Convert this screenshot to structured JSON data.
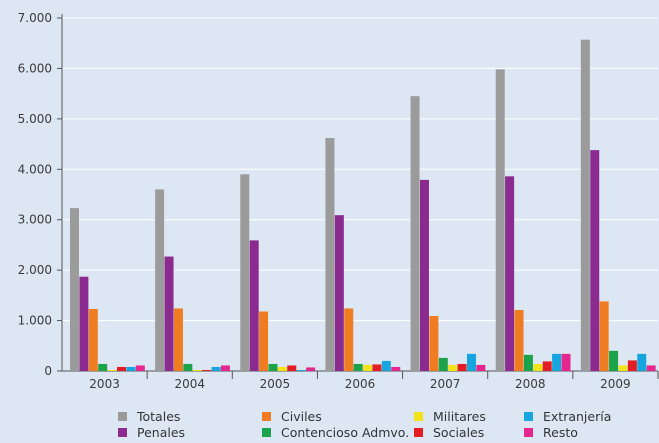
{
  "chart_data": {
    "type": "bar",
    "categories": [
      "2003",
      "2004",
      "2005",
      "2006",
      "2007",
      "2008",
      "2009"
    ],
    "ylim": [
      0,
      7000
    ],
    "yticks": [
      0,
      1000,
      2000,
      3000,
      4000,
      5000,
      6000,
      7000
    ],
    "ytick_labels": [
      "0",
      "1.000",
      "2.000",
      "3.000",
      "4.000",
      "5.000",
      "6.000",
      "7.000"
    ],
    "grid": true,
    "legend_position": "bottom",
    "series": [
      {
        "name": "Totales",
        "color": "#9b9b9b",
        "values": [
          3230,
          3600,
          3900,
          4620,
          5450,
          5980,
          6570
        ]
      },
      {
        "name": "Penales",
        "color": "#8b2a8f",
        "values": [
          1870,
          2270,
          2590,
          3090,
          3790,
          3860,
          4380
        ]
      },
      {
        "name": "Civiles",
        "color": "#f07c22",
        "values": [
          1230,
          1240,
          1180,
          1240,
          1090,
          1210,
          1380
        ]
      },
      {
        "name": "Contencioso Admvo.",
        "color": "#1aa34a",
        "values": [
          140,
          140,
          140,
          140,
          260,
          320,
          400
        ]
      },
      {
        "name": "Militares",
        "color": "#f2e21a",
        "values": [
          20,
          20,
          80,
          120,
          120,
          140,
          110
        ]
      },
      {
        "name": "Sociales",
        "color": "#e31d24",
        "values": [
          80,
          20,
          110,
          130,
          140,
          190,
          210
        ]
      },
      {
        "name": "Extranjería",
        "color": "#16a5de",
        "values": [
          80,
          80,
          20,
          200,
          340,
          340,
          340
        ]
      },
      {
        "name": "Resto",
        "color": "#e5268c",
        "values": [
          110,
          110,
          70,
          80,
          120,
          340,
          110
        ]
      }
    ],
    "legend_order": [
      [
        "Totales",
        "Civiles",
        "Militares",
        "Extranjería"
      ],
      [
        "Penales",
        "Contencioso Admvo.",
        "Sociales",
        "Resto"
      ]
    ]
  }
}
